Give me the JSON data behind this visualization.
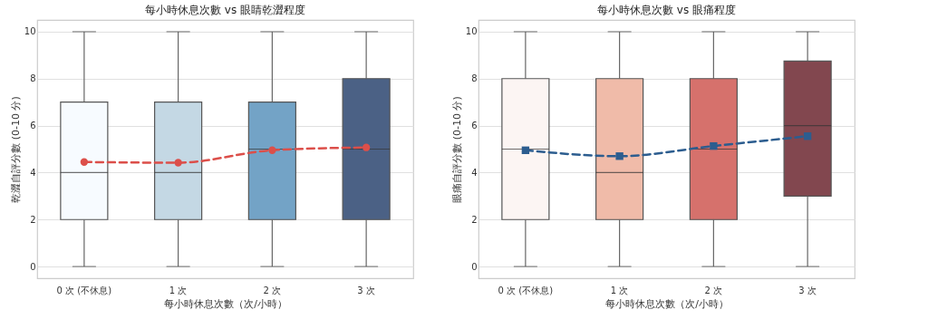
{
  "chart_data": [
    {
      "type": "box",
      "title": "每小時休息次數 vs 眼睛乾澀程度",
      "xlabel": "每小時休息次數（次/小時）",
      "ylabel": "乾澀自評分數 (0-10 分)",
      "categories": [
        "0 次 (不休息)",
        "1 次",
        "2 次",
        "3 次"
      ],
      "ylim": [
        -0.5,
        10.5
      ],
      "yticks": [
        0,
        2,
        4,
        6,
        8,
        10
      ],
      "grid": "y",
      "series": [
        {
          "type": "box",
          "colors": [
            "#f7fbff",
            "#c4d8e4",
            "#73a3c6",
            "#4b6185"
          ],
          "boxes": [
            {
              "low": 0,
              "q1": 2,
              "median": 4,
              "q3": 7,
              "high": 10
            },
            {
              "low": 0,
              "q1": 2,
              "median": 4,
              "q3": 7,
              "high": 10
            },
            {
              "low": 0,
              "q1": 2,
              "median": 5,
              "q3": 7,
              "high": 10
            },
            {
              "low": 0,
              "q1": 2,
              "median": 5,
              "q3": 8,
              "high": 10
            }
          ]
        },
        {
          "type": "line",
          "color": "#dc4f4a",
          "marker": "circle",
          "line_style": "dashed",
          "values": [
            4.45,
            4.42,
            4.95,
            5.07
          ]
        }
      ]
    },
    {
      "type": "box",
      "title": "每小時休息次數 vs 眼痛程度",
      "xlabel": "每小時休息次數（次/小時）",
      "ylabel": "眼痛自評分數 (0-10 分)",
      "categories": [
        "0 次 (不休息)",
        "1 次",
        "2 次",
        "3 次"
      ],
      "ylim": [
        -0.5,
        10.5
      ],
      "yticks": [
        0,
        2,
        4,
        6,
        8,
        10
      ],
      "grid": "y",
      "series": [
        {
          "type": "box",
          "colors": [
            "#fcf5f3",
            "#f0bba9",
            "#d6716c",
            "#82474f"
          ],
          "boxes": [
            {
              "low": 0,
              "q1": 2,
              "median": 5,
              "q3": 8,
              "high": 10
            },
            {
              "low": 0,
              "q1": 2,
              "median": 4,
              "q3": 8,
              "high": 10
            },
            {
              "low": 0,
              "q1": 2,
              "median": 5,
              "q3": 8,
              "high": 10
            },
            {
              "low": 0,
              "q1": 3,
              "median": 6,
              "q3": 8.75,
              "high": 10
            }
          ]
        },
        {
          "type": "line",
          "color": "#2c5d8f",
          "marker": "square",
          "line_style": "dashed",
          "values": [
            4.95,
            4.7,
            5.13,
            5.55
          ]
        }
      ]
    }
  ]
}
